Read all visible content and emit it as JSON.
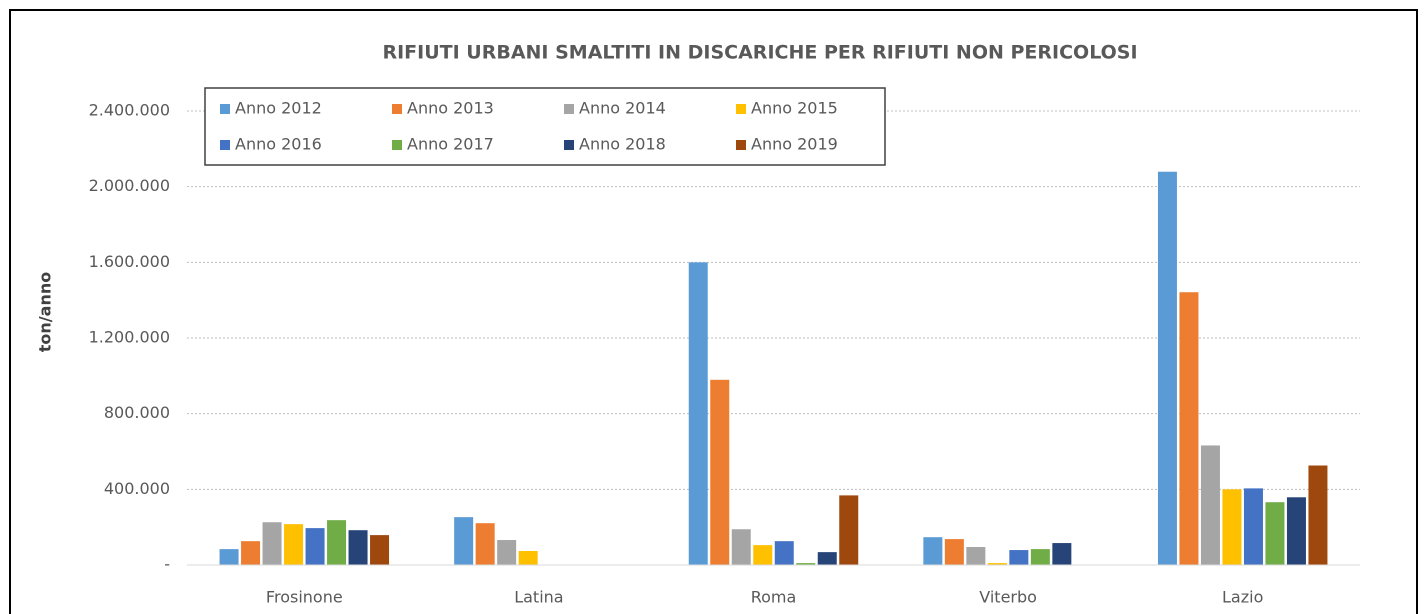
{
  "chart_data": {
    "type": "bar",
    "title": "RIFIUTI URBANI SMALTITI IN DISCARICHE PER RIFIUTI NON PERICOLOSI",
    "y_label": "ton/anno",
    "categories": [
      "Frosinone",
      "Latina",
      "Roma",
      "Viterbo",
      "Lazio"
    ],
    "series": [
      {
        "name": "Anno 2012",
        "color": "#5b9bd5",
        "values": [
          84000,
          253000,
          1600000,
          147000,
          2079000
        ]
      },
      {
        "name": "Anno 2013",
        "color": "#ed7d31",
        "values": [
          126000,
          221000,
          979000,
          137000,
          1442000
        ]
      },
      {
        "name": "Anno 2014",
        "color": "#a5a5a5",
        "values": [
          226000,
          132000,
          189000,
          95000,
          632000
        ]
      },
      {
        "name": "Anno 2015",
        "color": "#ffc000",
        "values": [
          216000,
          74000,
          105000,
          10000,
          400000
        ]
      },
      {
        "name": "Anno 2016",
        "color": "#4472c4",
        "values": [
          195000,
          0,
          126000,
          79000,
          405000
        ]
      },
      {
        "name": "Anno 2017",
        "color": "#70ad47",
        "values": [
          237000,
          0,
          10000,
          84000,
          332000
        ]
      },
      {
        "name": "Anno 2018",
        "color": "#264478",
        "values": [
          184000,
          0,
          68000,
          116000,
          358000
        ]
      },
      {
        "name": "Anno 2019",
        "color": "#9e480e",
        "values": [
          158000,
          0,
          368000,
          0,
          526000
        ]
      }
    ],
    "ylim": [
      0,
      2400000
    ],
    "yticks": [
      {
        "value": 0,
        "label": "-"
      },
      {
        "value": 400000,
        "label": "400.000"
      },
      {
        "value": 800000,
        "label": "800.000"
      },
      {
        "value": 1200000,
        "label": "1.200.000"
      },
      {
        "value": 1600000,
        "label": "1.600.000"
      },
      {
        "value": 2000000,
        "label": "2.000.000"
      },
      {
        "value": 2400000,
        "label": "2.400.000"
      }
    ],
    "grid": true
  }
}
